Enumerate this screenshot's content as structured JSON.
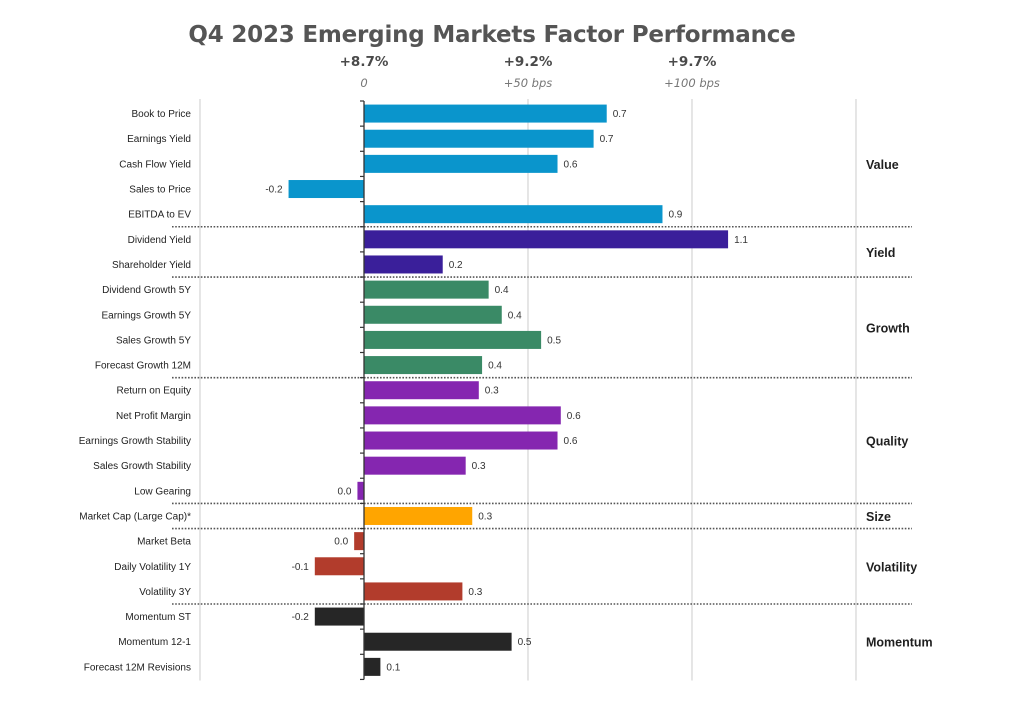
{
  "chart_data": {
    "type": "bar",
    "orientation": "horizontal",
    "title": "Q4 2023 Emerging Markets Factor Performance",
    "xlabel": "",
    "ylabel": "",
    "xlim": [
      -0.5,
      1.5
    ],
    "grid": true,
    "gridlines_at": [
      -0.5,
      0.5,
      1.0,
      1.5
    ],
    "top_axis": [
      {
        "value": 0,
        "label": "+8.7%",
        "sublabel": "0"
      },
      {
        "value": 0.5,
        "label": "+9.2%",
        "sublabel": "+50 bps"
      },
      {
        "value": 1.0,
        "label": "+9.7%",
        "sublabel": "+100 bps"
      }
    ],
    "colors": {
      "Value": "#0a95cc",
      "Yield": "#3a1f9a",
      "Growth": "#3a8a66",
      "Quality": "#8526b0",
      "Size": "#ffa500",
      "Volatility": "#b23c2c",
      "Momentum": "#262626"
    },
    "groups": [
      {
        "name": "Value",
        "items": [
          {
            "category": "Book to Price",
            "value": 0.74,
            "label": "0.7"
          },
          {
            "category": "Earnings Yield",
            "value": 0.7,
            "label": "0.7"
          },
          {
            "category": "Cash Flow Yield",
            "value": 0.59,
            "label": "0.6"
          },
          {
            "category": "Sales to Price",
            "value": -0.23,
            "label": "-0.2"
          },
          {
            "category": "EBITDA to EV",
            "value": 0.91,
            "label": "0.9"
          }
        ]
      },
      {
        "name": "Yield",
        "items": [
          {
            "category": "Dividend Yield",
            "value": 1.11,
            "label": "1.1"
          },
          {
            "category": "Shareholder Yield",
            "value": 0.24,
            "label": "0.2"
          }
        ]
      },
      {
        "name": "Growth",
        "items": [
          {
            "category": "Dividend Growth 5Y",
            "value": 0.38,
            "label": "0.4"
          },
          {
            "category": "Earnings Growth 5Y",
            "value": 0.42,
            "label": "0.4"
          },
          {
            "category": "Sales Growth 5Y",
            "value": 0.54,
            "label": "0.5"
          },
          {
            "category": "Forecast Growth 12M",
            "value": 0.36,
            "label": "0.4"
          }
        ]
      },
      {
        "name": "Quality",
        "items": [
          {
            "category": "Return on Equity",
            "value": 0.35,
            "label": "0.3"
          },
          {
            "category": "Net Profit Margin",
            "value": 0.6,
            "label": "0.6"
          },
          {
            "category": "Earnings Growth Stability",
            "value": 0.59,
            "label": "0.6"
          },
          {
            "category": "Sales Growth Stability",
            "value": 0.31,
            "label": "0.3"
          },
          {
            "category": "Low Gearing",
            "value": -0.02,
            "label": "0.0"
          }
        ]
      },
      {
        "name": "Size",
        "items": [
          {
            "category": "Market Cap (Large Cap)*",
            "value": 0.33,
            "label": "0.3"
          }
        ]
      },
      {
        "name": "Volatility",
        "items": [
          {
            "category": "Market Beta",
            "value": -0.03,
            "label": "0.0"
          },
          {
            "category": "Daily Volatility 1Y",
            "value": -0.15,
            "label": "-0.1"
          },
          {
            "category": "Volatility 3Y",
            "value": 0.3,
            "label": "0.3"
          }
        ]
      },
      {
        "name": "Momentum",
        "items": [
          {
            "category": "Momentum ST",
            "value": -0.15,
            "label": "-0.2"
          },
          {
            "category": "Momentum 12-1",
            "value": 0.45,
            "label": "0.5"
          },
          {
            "category": "Forecast 12M Revisions",
            "value": 0.05,
            "label": "0.1"
          }
        ]
      }
    ]
  }
}
